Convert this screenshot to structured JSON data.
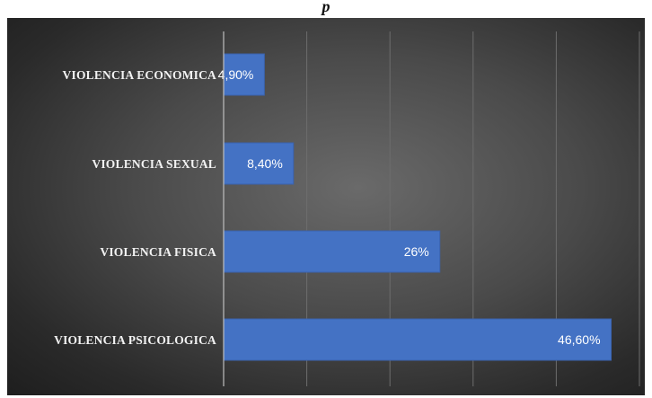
{
  "caption": "p",
  "chart_data": {
    "type": "bar",
    "orientation": "horizontal",
    "categories": [
      "VIOLENCIA ECONOMICA",
      "VIOLENCIA SEXUAL",
      "VIOLENCIA FISICA",
      "VIOLENCIA PSICOLOGICA"
    ],
    "values": [
      4.9,
      8.4,
      26,
      46.6
    ],
    "value_labels": [
      "4,90%",
      "8,40%",
      "26%",
      "46,60%"
    ],
    "xlim": [
      0,
      50
    ],
    "grid": true,
    "legend": "none",
    "colors": {
      "bar": "#4472c4",
      "bar_edge": "#3a62ad",
      "background": "#3c3c3c",
      "text": "#f2f2f2"
    }
  }
}
